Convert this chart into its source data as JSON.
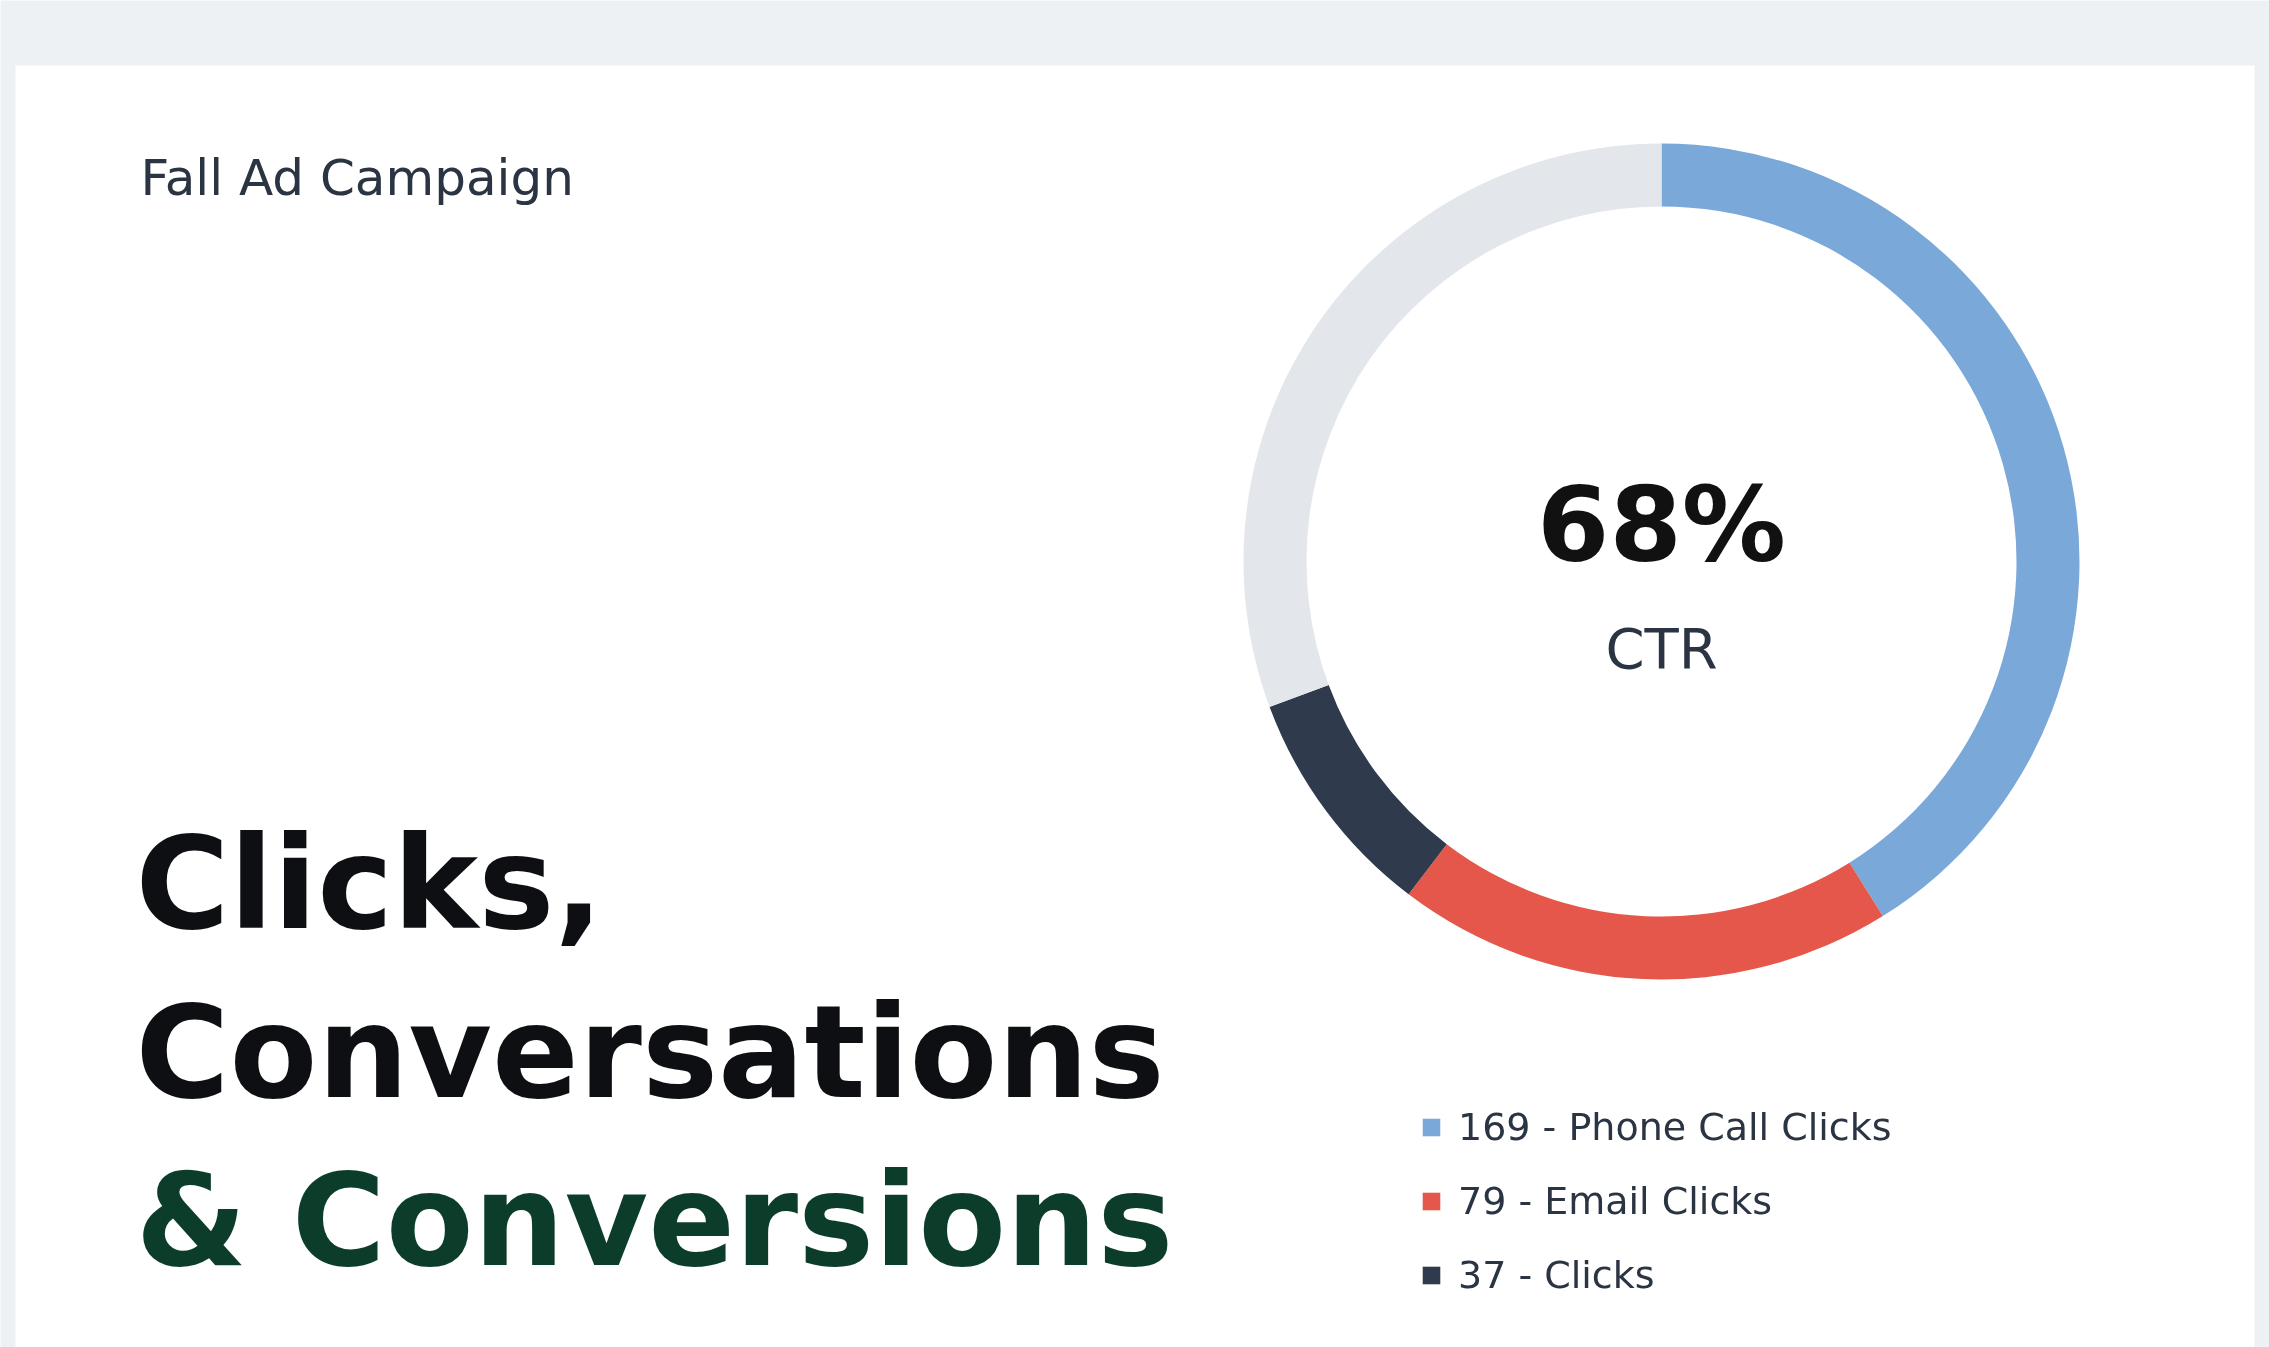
{
  "chart_data": {
    "type": "donut",
    "title": "Clicks, Conversations & Conversions",
    "subtitle": "Fall Ad Campaign",
    "categories": [
      "169 - Phone Call Clicks",
      "79 - Email Clicks",
      "37 - Clicks",
      null
    ],
    "values": [
      169,
      79,
      37,
      126
    ],
    "colors": [
      "#7aa9d9",
      "#e5574a",
      "#2f3a4d",
      "#e3e6ea"
    ],
    "annotations": [
      "68%",
      "CTR"
    ],
    "legend": "bottom right"
  }
}
